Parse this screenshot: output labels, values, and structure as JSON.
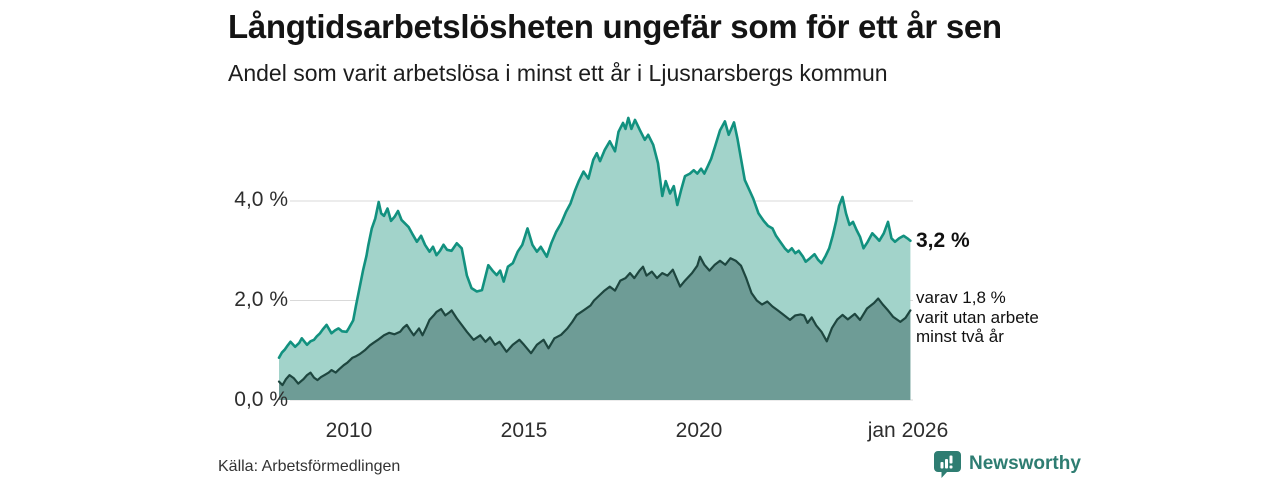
{
  "header": {
    "title": "Långtidsarbetslösheten ungefär som för ett år sen",
    "subtitle": "Andel som varit arbetslösa i minst ett år i Ljusnarsbergs kommun"
  },
  "chart_data": {
    "type": "area",
    "title": "Långtidsarbetslösheten ungefär som för ett år sen",
    "subtitle": "Andel som varit arbetslösa i minst ett år i Ljusnarsbergs kommun",
    "grid": true,
    "grid_color": "#d9d9d9",
    "xlim": [
      2008.0,
      2026.08
    ],
    "ylim": [
      0,
      6
    ],
    "y_ticks": [
      {
        "label": "0,0 %",
        "value": 0
      },
      {
        "label": "2,0 %",
        "value": 2
      },
      {
        "label": "4,0 %",
        "value": 4
      }
    ],
    "x_ticks": [
      {
        "label": "2010",
        "year": 2010
      },
      {
        "label": "2015",
        "year": 2015
      },
      {
        "label": "2020",
        "year": 2020
      },
      {
        "label": "jan 2026",
        "year": 2026.04
      }
    ],
    "series": [
      {
        "name": "total-minst-ett-ar",
        "fill": "#a2d3ca",
        "stroke": "#12917f",
        "end_value_label": "3,2 %",
        "points": [
          [
            2008.0,
            0.85
          ],
          [
            2008.08,
            0.95
          ],
          [
            2008.17,
            1.02
          ],
          [
            2008.25,
            1.1
          ],
          [
            2008.33,
            1.17
          ],
          [
            2008.46,
            1.07
          ],
          [
            2008.58,
            1.15
          ],
          [
            2008.65,
            1.24
          ],
          [
            2008.8,
            1.11
          ],
          [
            2008.9,
            1.18
          ],
          [
            2009.0,
            1.21
          ],
          [
            2009.08,
            1.28
          ],
          [
            2009.17,
            1.34
          ],
          [
            2009.25,
            1.42
          ],
          [
            2009.36,
            1.51
          ],
          [
            2009.5,
            1.34
          ],
          [
            2009.6,
            1.4
          ],
          [
            2009.7,
            1.44
          ],
          [
            2009.8,
            1.38
          ],
          [
            2009.93,
            1.37
          ],
          [
            2010.0,
            1.45
          ],
          [
            2010.12,
            1.6
          ],
          [
            2010.2,
            1.9
          ],
          [
            2010.3,
            2.25
          ],
          [
            2010.4,
            2.6
          ],
          [
            2010.5,
            2.9
          ],
          [
            2010.55,
            3.1
          ],
          [
            2010.65,
            3.45
          ],
          [
            2010.75,
            3.65
          ],
          [
            2010.85,
            3.98
          ],
          [
            2010.92,
            3.75
          ],
          [
            2011.0,
            3.7
          ],
          [
            2011.1,
            3.85
          ],
          [
            2011.2,
            3.6
          ],
          [
            2011.3,
            3.68
          ],
          [
            2011.4,
            3.8
          ],
          [
            2011.5,
            3.62
          ],
          [
            2011.6,
            3.55
          ],
          [
            2011.7,
            3.48
          ],
          [
            2011.8,
            3.35
          ],
          [
            2011.94,
            3.18
          ],
          [
            2012.06,
            3.3
          ],
          [
            2012.17,
            3.12
          ],
          [
            2012.3,
            2.98
          ],
          [
            2012.4,
            3.08
          ],
          [
            2012.5,
            2.91
          ],
          [
            2012.6,
            3.0
          ],
          [
            2012.7,
            3.12
          ],
          [
            2012.8,
            3.02
          ],
          [
            2012.93,
            3.0
          ],
          [
            2013.08,
            3.15
          ],
          [
            2013.22,
            3.05
          ],
          [
            2013.37,
            2.5
          ],
          [
            2013.5,
            2.25
          ],
          [
            2013.65,
            2.18
          ],
          [
            2013.8,
            2.21
          ],
          [
            2013.98,
            2.71
          ],
          [
            2014.1,
            2.6
          ],
          [
            2014.22,
            2.51
          ],
          [
            2014.32,
            2.6
          ],
          [
            2014.42,
            2.38
          ],
          [
            2014.54,
            2.68
          ],
          [
            2014.68,
            2.75
          ],
          [
            2014.82,
            2.98
          ],
          [
            2014.95,
            3.12
          ],
          [
            2015.1,
            3.45
          ],
          [
            2015.24,
            3.12
          ],
          [
            2015.37,
            2.98
          ],
          [
            2015.48,
            3.08
          ],
          [
            2015.65,
            2.88
          ],
          [
            2015.78,
            3.15
          ],
          [
            2015.92,
            3.38
          ],
          [
            2016.06,
            3.55
          ],
          [
            2016.2,
            3.78
          ],
          [
            2016.33,
            3.95
          ],
          [
            2016.45,
            4.2
          ],
          [
            2016.56,
            4.39
          ],
          [
            2016.7,
            4.59
          ],
          [
            2016.84,
            4.45
          ],
          [
            2016.98,
            4.83
          ],
          [
            2017.08,
            4.96
          ],
          [
            2017.17,
            4.8
          ],
          [
            2017.31,
            5.03
          ],
          [
            2017.45,
            5.2
          ],
          [
            2017.6,
            5.0
          ],
          [
            2017.7,
            5.39
          ],
          [
            2017.83,
            5.57
          ],
          [
            2017.9,
            5.45
          ],
          [
            2017.98,
            5.67
          ],
          [
            2018.07,
            5.45
          ],
          [
            2018.17,
            5.63
          ],
          [
            2018.31,
            5.43
          ],
          [
            2018.45,
            5.23
          ],
          [
            2018.55,
            5.33
          ],
          [
            2018.69,
            5.13
          ],
          [
            2018.83,
            4.76
          ],
          [
            2018.95,
            4.1
          ],
          [
            2019.05,
            4.4
          ],
          [
            2019.17,
            4.15
          ],
          [
            2019.28,
            4.3
          ],
          [
            2019.38,
            3.92
          ],
          [
            2019.5,
            4.25
          ],
          [
            2019.6,
            4.5
          ],
          [
            2019.74,
            4.55
          ],
          [
            2019.85,
            4.62
          ],
          [
            2019.95,
            4.55
          ],
          [
            2020.06,
            4.65
          ],
          [
            2020.15,
            4.55
          ],
          [
            2020.25,
            4.7
          ],
          [
            2020.35,
            4.85
          ],
          [
            2020.46,
            5.1
          ],
          [
            2020.6,
            5.42
          ],
          [
            2020.74,
            5.6
          ],
          [
            2020.85,
            5.33
          ],
          [
            2021.0,
            5.58
          ],
          [
            2021.1,
            5.25
          ],
          [
            2021.2,
            4.85
          ],
          [
            2021.31,
            4.42
          ],
          [
            2021.45,
            4.2
          ],
          [
            2021.55,
            4.05
          ],
          [
            2021.7,
            3.75
          ],
          [
            2021.85,
            3.6
          ],
          [
            2021.97,
            3.5
          ],
          [
            2022.1,
            3.45
          ],
          [
            2022.2,
            3.3
          ],
          [
            2022.32,
            3.18
          ],
          [
            2022.45,
            3.05
          ],
          [
            2022.55,
            2.98
          ],
          [
            2022.65,
            3.05
          ],
          [
            2022.75,
            2.95
          ],
          [
            2022.85,
            3.0
          ],
          [
            2022.97,
            2.88
          ],
          [
            2023.05,
            2.78
          ],
          [
            2023.17,
            2.85
          ],
          [
            2023.3,
            2.93
          ],
          [
            2023.4,
            2.82
          ],
          [
            2023.5,
            2.75
          ],
          [
            2023.62,
            2.9
          ],
          [
            2023.72,
            3.05
          ],
          [
            2023.82,
            3.3
          ],
          [
            2023.92,
            3.6
          ],
          [
            2024.0,
            3.9
          ],
          [
            2024.1,
            4.08
          ],
          [
            2024.2,
            3.75
          ],
          [
            2024.3,
            3.52
          ],
          [
            2024.4,
            3.58
          ],
          [
            2024.5,
            3.42
          ],
          [
            2024.6,
            3.28
          ],
          [
            2024.7,
            3.05
          ],
          [
            2024.82,
            3.18
          ],
          [
            2024.95,
            3.35
          ],
          [
            2025.05,
            3.28
          ],
          [
            2025.15,
            3.2
          ],
          [
            2025.28,
            3.35
          ],
          [
            2025.4,
            3.58
          ],
          [
            2025.5,
            3.25
          ],
          [
            2025.6,
            3.18
          ],
          [
            2025.72,
            3.25
          ],
          [
            2025.85,
            3.3
          ],
          [
            2025.95,
            3.25
          ],
          [
            2026.04,
            3.2
          ]
        ]
      },
      {
        "name": "minst-tva-ar",
        "fill": "#6e9c96",
        "stroke": "#1e463f",
        "end_value_label": "varav 1,8 %",
        "points": [
          [
            2008.0,
            0.37
          ],
          [
            2008.1,
            0.3
          ],
          [
            2008.2,
            0.42
          ],
          [
            2008.3,
            0.5
          ],
          [
            2008.42,
            0.44
          ],
          [
            2008.55,
            0.33
          ],
          [
            2008.7,
            0.42
          ],
          [
            2008.8,
            0.5
          ],
          [
            2008.9,
            0.55
          ],
          [
            2009.0,
            0.45
          ],
          [
            2009.1,
            0.4
          ],
          [
            2009.2,
            0.46
          ],
          [
            2009.3,
            0.5
          ],
          [
            2009.42,
            0.55
          ],
          [
            2009.5,
            0.6
          ],
          [
            2009.62,
            0.55
          ],
          [
            2009.72,
            0.62
          ],
          [
            2009.85,
            0.7
          ],
          [
            2009.95,
            0.75
          ],
          [
            2010.1,
            0.85
          ],
          [
            2010.2,
            0.88
          ],
          [
            2010.3,
            0.92
          ],
          [
            2010.45,
            1.0
          ],
          [
            2010.6,
            1.1
          ],
          [
            2010.7,
            1.15
          ],
          [
            2010.85,
            1.22
          ],
          [
            2011.0,
            1.3
          ],
          [
            2011.15,
            1.35
          ],
          [
            2011.3,
            1.32
          ],
          [
            2011.46,
            1.37
          ],
          [
            2011.55,
            1.45
          ],
          [
            2011.65,
            1.51
          ],
          [
            2011.75,
            1.4
          ],
          [
            2011.85,
            1.3
          ],
          [
            2012.0,
            1.44
          ],
          [
            2012.1,
            1.3
          ],
          [
            2012.2,
            1.45
          ],
          [
            2012.3,
            1.61
          ],
          [
            2012.42,
            1.7
          ],
          [
            2012.5,
            1.77
          ],
          [
            2012.63,
            1.83
          ],
          [
            2012.75,
            1.7
          ],
          [
            2012.85,
            1.75
          ],
          [
            2012.93,
            1.8
          ],
          [
            2013.08,
            1.64
          ],
          [
            2013.22,
            1.51
          ],
          [
            2013.37,
            1.37
          ],
          [
            2013.56,
            1.21
          ],
          [
            2013.75,
            1.3
          ],
          [
            2013.9,
            1.17
          ],
          [
            2014.03,
            1.26
          ],
          [
            2014.17,
            1.11
          ],
          [
            2014.3,
            1.17
          ],
          [
            2014.5,
            0.97
          ],
          [
            2014.68,
            1.11
          ],
          [
            2014.87,
            1.21
          ],
          [
            2015.0,
            1.11
          ],
          [
            2015.2,
            0.94
          ],
          [
            2015.37,
            1.11
          ],
          [
            2015.56,
            1.21
          ],
          [
            2015.7,
            1.04
          ],
          [
            2015.87,
            1.24
          ],
          [
            2016.06,
            1.31
          ],
          [
            2016.24,
            1.44
          ],
          [
            2016.38,
            1.57
          ],
          [
            2016.51,
            1.71
          ],
          [
            2016.7,
            1.8
          ],
          [
            2016.9,
            1.9
          ],
          [
            2017.0,
            2.0
          ],
          [
            2017.15,
            2.1
          ],
          [
            2017.3,
            2.2
          ],
          [
            2017.45,
            2.28
          ],
          [
            2017.6,
            2.2
          ],
          [
            2017.75,
            2.4
          ],
          [
            2017.9,
            2.45
          ],
          [
            2018.03,
            2.55
          ],
          [
            2018.15,
            2.45
          ],
          [
            2018.3,
            2.6
          ],
          [
            2018.4,
            2.68
          ],
          [
            2018.5,
            2.5
          ],
          [
            2018.65,
            2.58
          ],
          [
            2018.8,
            2.45
          ],
          [
            2018.95,
            2.55
          ],
          [
            2019.1,
            2.5
          ],
          [
            2019.25,
            2.62
          ],
          [
            2019.46,
            2.28
          ],
          [
            2019.6,
            2.4
          ],
          [
            2019.8,
            2.55
          ],
          [
            2019.95,
            2.7
          ],
          [
            2020.03,
            2.88
          ],
          [
            2020.15,
            2.72
          ],
          [
            2020.3,
            2.6
          ],
          [
            2020.45,
            2.72
          ],
          [
            2020.6,
            2.8
          ],
          [
            2020.75,
            2.72
          ],
          [
            2020.9,
            2.85
          ],
          [
            2021.05,
            2.8
          ],
          [
            2021.2,
            2.7
          ],
          [
            2021.35,
            2.45
          ],
          [
            2021.5,
            2.15
          ],
          [
            2021.65,
            2.0
          ],
          [
            2021.8,
            1.92
          ],
          [
            2021.95,
            1.98
          ],
          [
            2022.1,
            1.88
          ],
          [
            2022.25,
            1.8
          ],
          [
            2022.4,
            1.72
          ],
          [
            2022.6,
            1.61
          ],
          [
            2022.75,
            1.7
          ],
          [
            2022.9,
            1.72
          ],
          [
            2023.0,
            1.7
          ],
          [
            2023.1,
            1.55
          ],
          [
            2023.22,
            1.66
          ],
          [
            2023.35,
            1.5
          ],
          [
            2023.5,
            1.37
          ],
          [
            2023.65,
            1.18
          ],
          [
            2023.8,
            1.45
          ],
          [
            2023.95,
            1.62
          ],
          [
            2024.1,
            1.71
          ],
          [
            2024.25,
            1.62
          ],
          [
            2024.45,
            1.73
          ],
          [
            2024.6,
            1.61
          ],
          [
            2024.8,
            1.84
          ],
          [
            2025.0,
            1.95
          ],
          [
            2025.12,
            2.04
          ],
          [
            2025.25,
            1.92
          ],
          [
            2025.4,
            1.8
          ],
          [
            2025.55,
            1.67
          ],
          [
            2025.75,
            1.57
          ],
          [
            2025.9,
            1.65
          ],
          [
            2026.04,
            1.8
          ]
        ]
      }
    ],
    "annotations": {
      "end_total": "3,2 %",
      "end_sub_line1": "varav 1,8 %",
      "end_sub_line2": "varit utan arbete",
      "end_sub_line3": "minst två år"
    },
    "legend": "none"
  },
  "footer": {
    "source": "Källa: Arbetsförmedlingen",
    "brand": "Newsworthy",
    "brand_color": "#2e7d72"
  }
}
